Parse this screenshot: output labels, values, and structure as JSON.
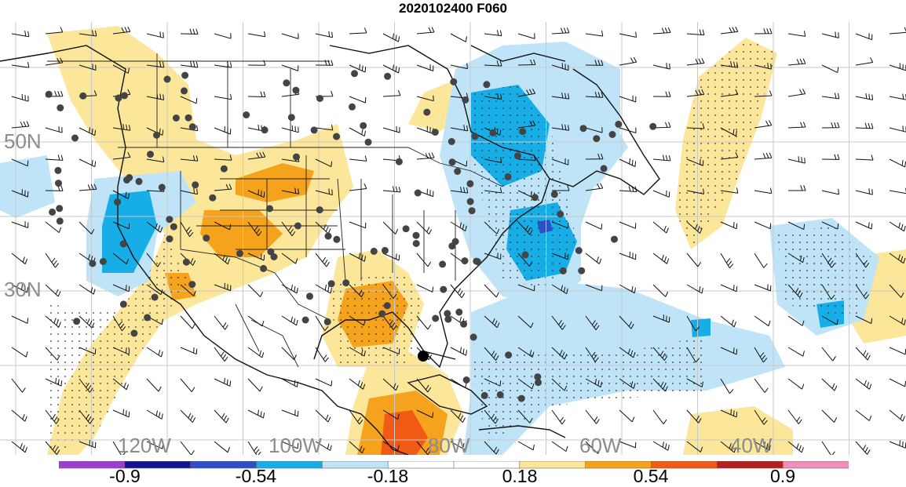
{
  "title": "2020102400 F060",
  "lat_labels": [
    "50N",
    "30N"
  ],
  "lon_labels": [
    "120W",
    "100W",
    "80W",
    "60W",
    "40W"
  ],
  "colorbar": {
    "colors": [
      "#9a3fd0",
      "#14148c",
      "#2e4fc8",
      "#17aee8",
      "#bfe4f7",
      "#ffffff",
      "#ffffff",
      "#fbe69a",
      "#f5a21c",
      "#f05a14",
      "#b42020",
      "#f090b8"
    ],
    "labels": [
      "-0.9",
      "-0.54",
      "-0.18",
      "0.18",
      "0.54",
      "0.9"
    ]
  },
  "colors": {
    "pos_light": "#fbe69a",
    "pos_mid": "#f5a21c",
    "pos_strong": "#f05a14",
    "neg_light": "#bfe4f7",
    "neg_mid": "#17aee8",
    "neg_strong": "#2e4fc8"
  }
}
